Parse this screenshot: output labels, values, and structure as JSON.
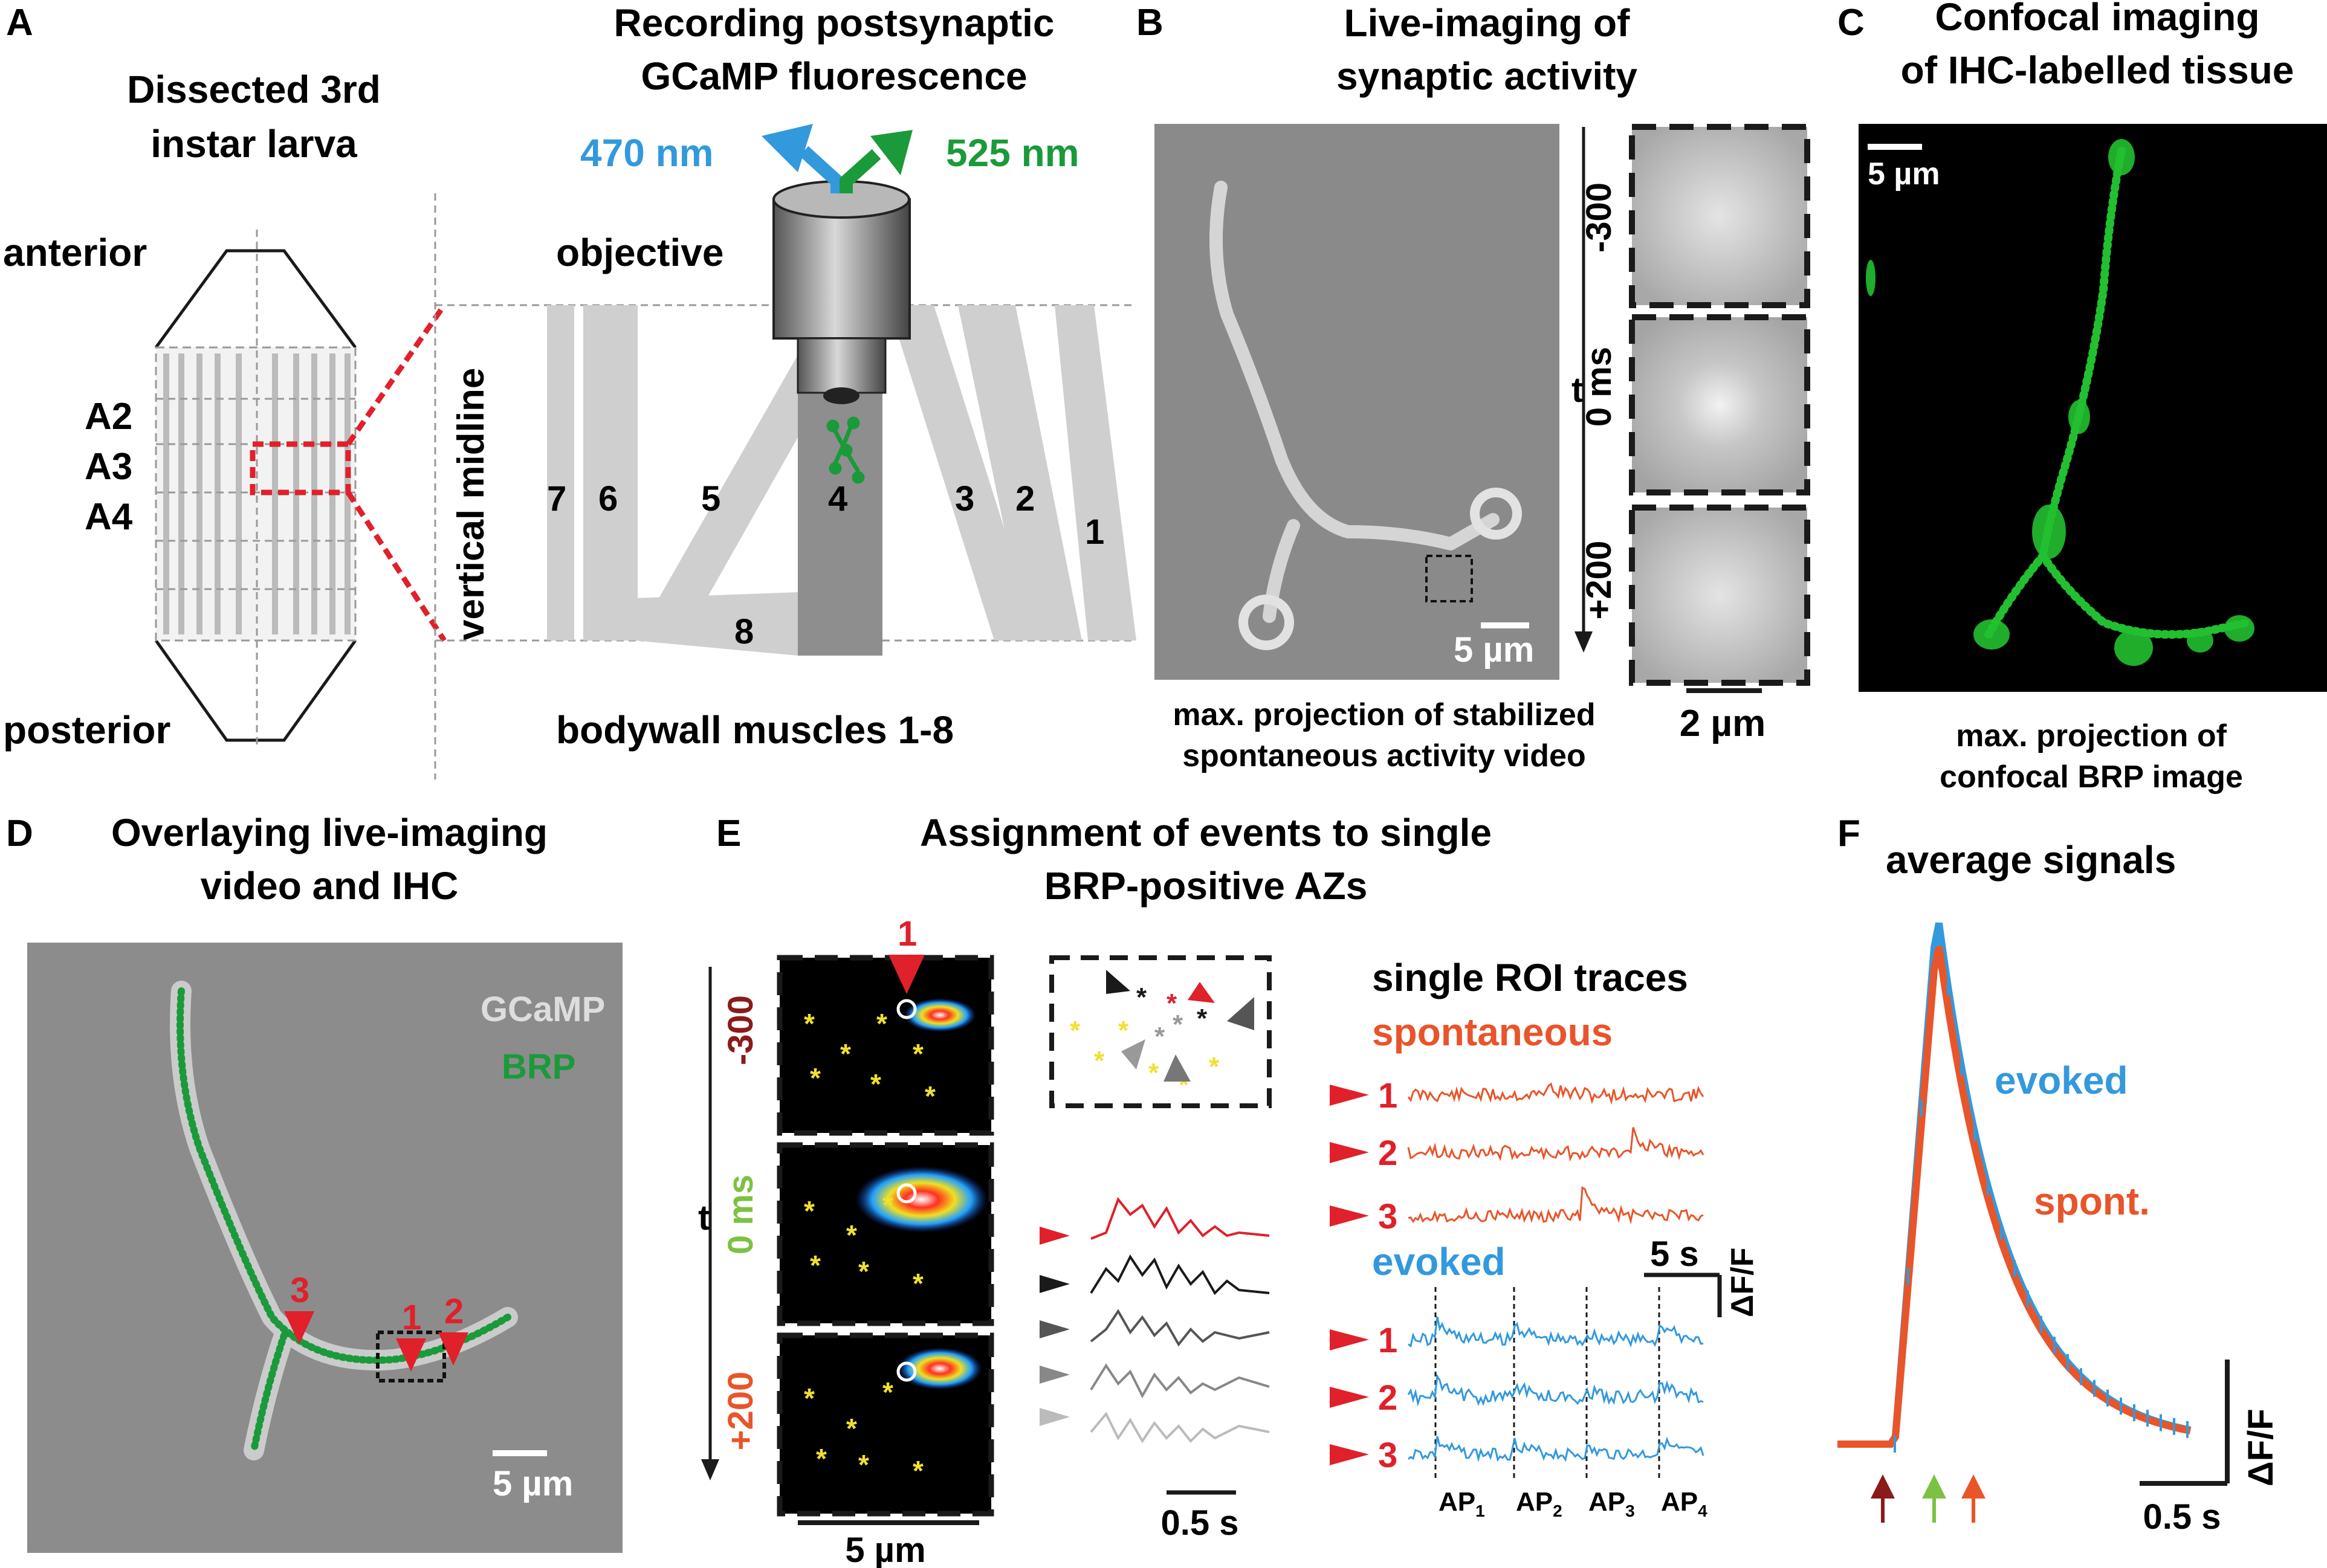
{
  "colors": {
    "blue": "#3399dd",
    "green": "#1a9a3a",
    "red": "#e0202a",
    "orange": "#e8552a",
    "darkred": "#8b1a1a",
    "lightgreen": "#7cc142",
    "yellow": "#f0e030",
    "muscle": "#cfcfcf",
    "imgbg": "#8a8a8a"
  },
  "panelA": {
    "letter": "A",
    "title_line1": "Dissected 3rd",
    "title_line2": "instar larva",
    "anterior": "anterior",
    "posterior": "posterior",
    "segments": [
      "A2",
      "A3",
      "A4"
    ],
    "midline": "vertical midline",
    "rec_title_line1": "Recording postsynaptic",
    "rec_title_line2": "GCaMP fluorescence",
    "wavelength_in": "470 nm",
    "wavelength_out": "525 nm",
    "objective": "objective",
    "muscles_label": "bodywall muscles 1-8",
    "muscle_numbers": [
      "7",
      "6",
      "5",
      "4",
      "3",
      "2",
      "1",
      "8"
    ]
  },
  "panelB": {
    "letter": "B",
    "title_line1": "Live-imaging of",
    "title_line2": "synaptic activity",
    "scale": "5 µm",
    "scale_small": "2 µm",
    "caption_line1": "max. projection of stabilized",
    "caption_line2": "spontaneous activity video",
    "time_labels": [
      "-300",
      "0 ms",
      "+200"
    ],
    "t": "t"
  },
  "panelC": {
    "letter": "C",
    "title_line1": "Confocal imaging",
    "title_line2": "of IHC-labelled tissue",
    "scale": "5 µm",
    "caption_line1": "max. projection of",
    "caption_line2": "confocal BRP image"
  },
  "panelD": {
    "letter": "D",
    "title_line1": "Overlaying live-imaging",
    "title_line2": "video and IHC",
    "legend_gcamp": "GCaMP",
    "legend_brp": "BRP",
    "arrows": [
      "3",
      "1",
      "2"
    ],
    "scale": "5 µm"
  },
  "panelE": {
    "letter": "E",
    "title_line1": "Assignment of events to single",
    "title_line2": "BRP-positive AZs",
    "time_labels": [
      "-300",
      "0 ms",
      "+200"
    ],
    "t": "t",
    "arrow_label": "1",
    "scale": "5 µm",
    "trace_scale": "0.5 s",
    "roi_title": "single ROI traces",
    "spontaneous": "spontaneous",
    "evoked": "evoked",
    "roi_numbers": [
      "1",
      "2",
      "3"
    ],
    "time_scale": "5 s",
    "dff": "ΔF/F",
    "aps": [
      "AP",
      "AP",
      "AP",
      "AP"
    ],
    "ap_subs": [
      "1",
      "2",
      "3",
      "4"
    ]
  },
  "panelF": {
    "letter": "F",
    "title": "average signals",
    "evoked": "evoked",
    "spont": "spont.",
    "dff": "ΔF/F",
    "scale": "0.5 s"
  }
}
